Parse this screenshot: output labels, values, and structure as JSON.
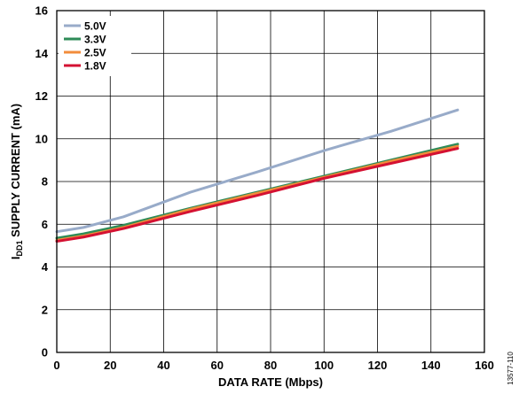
{
  "chart_data": {
    "type": "line",
    "xlabel": "DATA RATE (Mbps)",
    "ylabel_main": "I",
    "ylabel_sub": "DD1",
    "ylabel_rest": " SUPPLY CURRENT (mA)",
    "xlim": [
      0,
      160
    ],
    "ylim": [
      0,
      16
    ],
    "x_ticks": [
      "0",
      "20",
      "40",
      "60",
      "80",
      "100",
      "120",
      "140",
      "160"
    ],
    "y_ticks": [
      "0",
      "2",
      "4",
      "6",
      "8",
      "10",
      "12",
      "14",
      "16"
    ],
    "grid": true,
    "legend_position": "top-left",
    "series": [
      {
        "name": "5.0V",
        "color": "#98abc9",
        "x": [
          0,
          10,
          25,
          50,
          75,
          100,
          125,
          150
        ],
        "y": [
          5.65,
          5.85,
          6.35,
          7.5,
          8.45,
          9.45,
          10.35,
          11.35
        ]
      },
      {
        "name": "3.3V",
        "color": "#2e8b57",
        "x": [
          0,
          10,
          25,
          50,
          75,
          100,
          125,
          150
        ],
        "y": [
          5.35,
          5.55,
          5.95,
          6.75,
          7.5,
          8.25,
          9.0,
          9.75
        ]
      },
      {
        "name": "2.5V",
        "color": "#f28c3b",
        "x": [
          0,
          10,
          25,
          50,
          75,
          100,
          125,
          150
        ],
        "y": [
          5.25,
          5.45,
          5.85,
          6.7,
          7.45,
          8.2,
          8.95,
          9.65
        ]
      },
      {
        "name": "1.8V",
        "color": "#d41132",
        "x": [
          0,
          10,
          25,
          50,
          75,
          100,
          125,
          150
        ],
        "y": [
          5.2,
          5.4,
          5.8,
          6.6,
          7.35,
          8.15,
          8.85,
          9.55
        ]
      }
    ]
  },
  "figure_id": "13577-110"
}
